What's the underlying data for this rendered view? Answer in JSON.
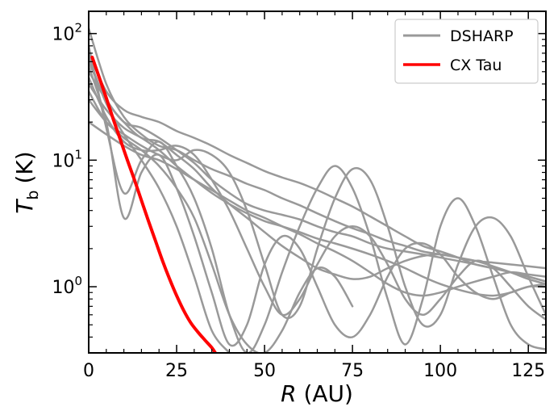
{
  "chart_data": {
    "type": "line",
    "xlabel_var": "R",
    "xlabel_unit": "(AU)",
    "ylabel_var": "T",
    "ylabel_sub": "b",
    "ylabel_unit": "(K)",
    "xlim": [
      0,
      130
    ],
    "ylim": [
      0.3,
      150
    ],
    "yscale": "log",
    "grid": false,
    "legend_position": "top-right",
    "x_ticks": [
      {
        "value": 0,
        "label": "0"
      },
      {
        "value": 25,
        "label": "25"
      },
      {
        "value": 50,
        "label": "50"
      },
      {
        "value": 75,
        "label": "75"
      },
      {
        "value": 100,
        "label": "100"
      },
      {
        "value": 125,
        "label": "125"
      }
    ],
    "y_ticks": [
      {
        "value": 1,
        "label_base": "10",
        "label_exp": "0"
      },
      {
        "value": 10,
        "label_base": "10",
        "label_exp": "1"
      },
      {
        "value": 100,
        "label_base": "10",
        "label_exp": "2"
      }
    ],
    "legend": [
      {
        "label": "DSHARP",
        "color": "#999999"
      },
      {
        "label": "CX Tau",
        "color": "#ff0000"
      }
    ],
    "series": [
      {
        "name": "DSHARP",
        "color": "#999999",
        "x": [
          0,
          5,
          10,
          15,
          20,
          25,
          30,
          35,
          40,
          45,
          50,
          55,
          60,
          65,
          70,
          75,
          80,
          85,
          90,
          95,
          100,
          105,
          110,
          115,
          120,
          125,
          130
        ],
        "y": [
          110,
          40,
          22,
          16,
          13,
          12,
          10,
          8.5,
          7.5,
          6.5,
          5.8,
          5.0,
          4.4,
          3.8,
          3.3,
          2.9,
          2.6,
          2.3,
          2.1,
          1.9,
          1.8,
          1.7,
          1.6,
          1.55,
          1.5,
          1.45,
          1.4
        ]
      },
      {
        "name": "DSHARP",
        "color": "#999999",
        "x": [
          0,
          5,
          10,
          15,
          20,
          25,
          30,
          35,
          40,
          45,
          50,
          55,
          60,
          65,
          70,
          75,
          80,
          85,
          90,
          95,
          100,
          105,
          110,
          115,
          120,
          125,
          130
        ],
        "y": [
          70,
          35,
          25,
          22,
          20,
          17,
          15,
          13,
          11,
          9.5,
          8.2,
          7.3,
          6.6,
          5.8,
          5.0,
          4.3,
          3.6,
          3.0,
          2.5,
          2.1,
          1.9,
          1.7,
          1.5,
          1.4,
          1.3,
          1.2,
          1.1
        ]
      },
      {
        "name": "DSHARP",
        "color": "#999999",
        "x": [
          0,
          5,
          10,
          15,
          20,
          25,
          30,
          35,
          40,
          45,
          50,
          55,
          60,
          65,
          70,
          75,
          80,
          85,
          90,
          95,
          100,
          105,
          110,
          115,
          120,
          125,
          130
        ],
        "y": [
          50,
          30,
          20,
          18,
          15,
          12,
          9.5,
          7.0,
          5.5,
          4.5,
          4.0,
          3.7,
          3.4,
          3.0,
          2.7,
          2.5,
          2.2,
          2.0,
          1.9,
          1.8,
          1.7,
          1.6,
          1.5,
          1.4,
          1.3,
          1.2,
          1.1
        ]
      },
      {
        "name": "DSHARP",
        "color": "#999999",
        "x": [
          0,
          5,
          10,
          15,
          20,
          25,
          30,
          35,
          40,
          45,
          50,
          55,
          60,
          65,
          70,
          75,
          80,
          85,
          90,
          95,
          100,
          105,
          110,
          115,
          120,
          125,
          130
        ],
        "y": [
          40,
          25,
          18,
          15,
          12,
          9.0,
          7.0,
          5.5,
          4.5,
          3.8,
          3.3,
          3.0,
          2.7,
          2.4,
          2.2,
          2.0,
          1.8,
          1.6,
          1.4,
          1.2,
          1.05,
          0.95,
          0.88,
          0.85,
          0.9,
          1.0,
          1.0
        ]
      },
      {
        "name": "DSHARP",
        "color": "#999999",
        "x": [
          0,
          5,
          10,
          15,
          20,
          25,
          30,
          35,
          40,
          45,
          50,
          55,
          60,
          65,
          70,
          75,
          80,
          85,
          90,
          95,
          100,
          105,
          110,
          115,
          120,
          125,
          130
        ],
        "y": [
          20,
          16,
          13,
          11,
          10,
          8.5,
          7.0,
          5.8,
          4.8,
          4.0,
          3.5,
          3.0,
          2.6,
          2.2,
          1.9,
          1.6,
          1.3,
          1.05,
          0.9,
          0.85,
          0.9,
          1.0,
          1.1,
          1.2,
          1.3,
          1.25,
          1.2
        ]
      },
      {
        "name": "DSHARP",
        "color": "#999999",
        "x": [
          0,
          5,
          10,
          15,
          20,
          25,
          30,
          35,
          40,
          45,
          50,
          55,
          60,
          65,
          70,
          75,
          80,
          85,
          90,
          95,
          100,
          105,
          110,
          115,
          120,
          125,
          130
        ],
        "y": [
          60,
          30,
          20,
          15,
          14,
          11,
          8.5,
          6.0,
          4.5,
          3.5,
          2.7,
          2.1,
          1.7,
          1.4,
          1.25,
          1.15,
          1.2,
          1.4,
          1.6,
          1.75,
          1.8,
          1.7,
          1.6,
          1.45,
          1.3,
          1.15,
          1.05
        ]
      },
      {
        "name": "DSHARP",
        "color": "#999999",
        "x": [
          0,
          5,
          10,
          15,
          20,
          25,
          30,
          35,
          40,
          45,
          50,
          55,
          60,
          65,
          70,
          75,
          80,
          85,
          90,
          95,
          100,
          105,
          110,
          115,
          120,
          125,
          130
        ],
        "y": [
          45,
          22,
          14,
          12,
          12,
          13,
          11,
          7.0,
          4.0,
          2.0,
          1.0,
          0.6,
          0.8,
          1.5,
          2.5,
          3.0,
          2.5,
          1.5,
          0.8,
          0.6,
          0.8,
          1.2,
          1.6,
          1.4,
          1.0,
          0.7,
          0.55
        ]
      },
      {
        "name": "DSHARP",
        "color": "#999999",
        "x": [
          0,
          5,
          10,
          15,
          20,
          25,
          30,
          35,
          40,
          45,
          50,
          55,
          60,
          65,
          70,
          75,
          80,
          85,
          90,
          95,
          100,
          105,
          110,
          115,
          120,
          125,
          130
        ],
        "y": [
          35,
          20,
          16,
          13,
          11,
          10,
          12,
          11,
          8.0,
          4.0,
          1.5,
          0.6,
          0.7,
          2.0,
          5.0,
          8.5,
          7.0,
          3.0,
          1.0,
          0.5,
          0.6,
          1.5,
          3.0,
          3.5,
          2.5,
          1.2,
          0.6
        ]
      },
      {
        "name": "DSHARP",
        "color": "#999999",
        "x": [
          0,
          5,
          10,
          15,
          20,
          25,
          30,
          35,
          40,
          45,
          50,
          55,
          60,
          65,
          70,
          75,
          80,
          85,
          90,
          95,
          100,
          105,
          110,
          115,
          120,
          125,
          130
        ],
        "y": [
          80,
          18,
          5.5,
          10,
          14,
          9.0,
          5.0,
          2.0,
          0.6,
          0.3,
          0.5,
          1.3,
          3.0,
          6.0,
          9.0,
          6.0,
          2.5,
          0.8,
          0.35,
          0.8,
          3.0,
          5.0,
          3.0,
          1.2,
          0.5,
          0.35,
          0.32
        ]
      },
      {
        "name": "DSHARP",
        "color": "#999999",
        "x": [
          0,
          5,
          10,
          15,
          20,
          25,
          30,
          35,
          40,
          45,
          50,
          55,
          60,
          65,
          70,
          75,
          80,
          85,
          90,
          95,
          100,
          105,
          110,
          115,
          120,
          125,
          130
        ],
        "y": [
          55,
          20,
          3.5,
          8.0,
          11,
          6.0,
          2.5,
          0.9,
          0.35,
          0.5,
          1.5,
          2.5,
          2.0,
          1.0,
          0.5,
          0.4,
          0.6,
          1.2,
          2.0,
          2.2,
          1.8,
          1.2,
          0.9,
          0.8,
          0.9,
          1.0,
          1.05
        ]
      },
      {
        "name": "DSHARP",
        "color": "#999999",
        "x": [
          0,
          5,
          10,
          15,
          20,
          25,
          30,
          35,
          40,
          45,
          50,
          55,
          60,
          65,
          70,
          75
        ],
        "y": [
          30,
          20,
          15,
          12,
          9.0,
          6.0,
          3.5,
          1.5,
          0.6,
          0.35,
          0.3,
          0.45,
          0.9,
          1.4,
          1.2,
          0.7
        ]
      },
      {
        "name": "DSHARP",
        "color": "#999999",
        "x": [
          0,
          5,
          10,
          15,
          20,
          25,
          30,
          35,
          40
        ],
        "y": [
          65,
          28,
          16,
          10,
          6.0,
          3.0,
          1.2,
          0.45,
          0.3
        ]
      },
      {
        "name": "CX Tau",
        "color": "#ff0000",
        "x": [
          1,
          3,
          5,
          7,
          9,
          11,
          13,
          15,
          17,
          19,
          21,
          23,
          25,
          27,
          29,
          31,
          33,
          35,
          36
        ],
        "y": [
          65,
          45,
          31,
          21,
          14.5,
          10,
          7.0,
          4.8,
          3.3,
          2.3,
          1.6,
          1.15,
          0.85,
          0.65,
          0.52,
          0.44,
          0.38,
          0.33,
          0.3
        ]
      }
    ]
  }
}
